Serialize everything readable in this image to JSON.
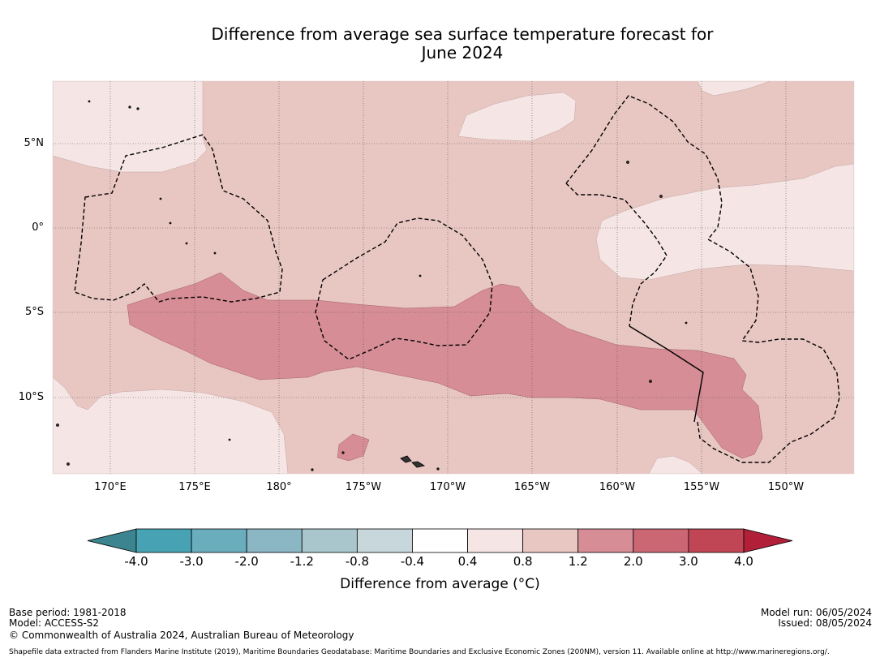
{
  "title": {
    "line1": "Difference from average sea surface temperature forecast for",
    "line2": "June 2024"
  },
  "latitude_labels": [
    "5°N",
    "0°",
    "5°S",
    "10°S"
  ],
  "longitude_labels": [
    "170°E",
    "175°E",
    "180°",
    "175°W",
    "170°W",
    "165°W",
    "160°W",
    "155°W",
    "150°W"
  ],
  "colorbar": {
    "title": "Difference from average (°C)",
    "tick_labels": [
      "-4.0",
      "-3.0",
      "-2.0",
      "-1.2",
      "-0.8",
      "-0.4",
      "0.4",
      "0.8",
      "1.2",
      "2.0",
      "3.0",
      "4.0"
    ],
    "colors": [
      "#3c8590",
      "#47a3b3",
      "#6aadbd",
      "#8ab7c3",
      "#a9c6cc",
      "#c8d7db",
      "#ffffff",
      "#f5e6e5",
      "#e8c6c2",
      "#d68d95",
      "#cb6673",
      "#c04656",
      "#b11f38"
    ]
  },
  "fill_colors": {
    "light": "#f5e6e5",
    "medium": "#e8c6c2",
    "strong": "#d68d95"
  },
  "footer": {
    "base_period": "Base period: 1981-2018",
    "model": "Model: ACCESS-S2",
    "copyright": "© Commonwealth of Australia 2024, Australian Bureau of Meteorology",
    "model_run": "Model run: 06/05/2024",
    "issued": "Issued: 08/05/2024",
    "shapefile": "Shapefile data extracted from Flanders Marine Institute (2019), Maritime Boundaries Geodatabase: Maritime Boundaries and Exclusive Economic Zones (200NM), version 11. Available online at http://www.marineregions.org/."
  }
}
